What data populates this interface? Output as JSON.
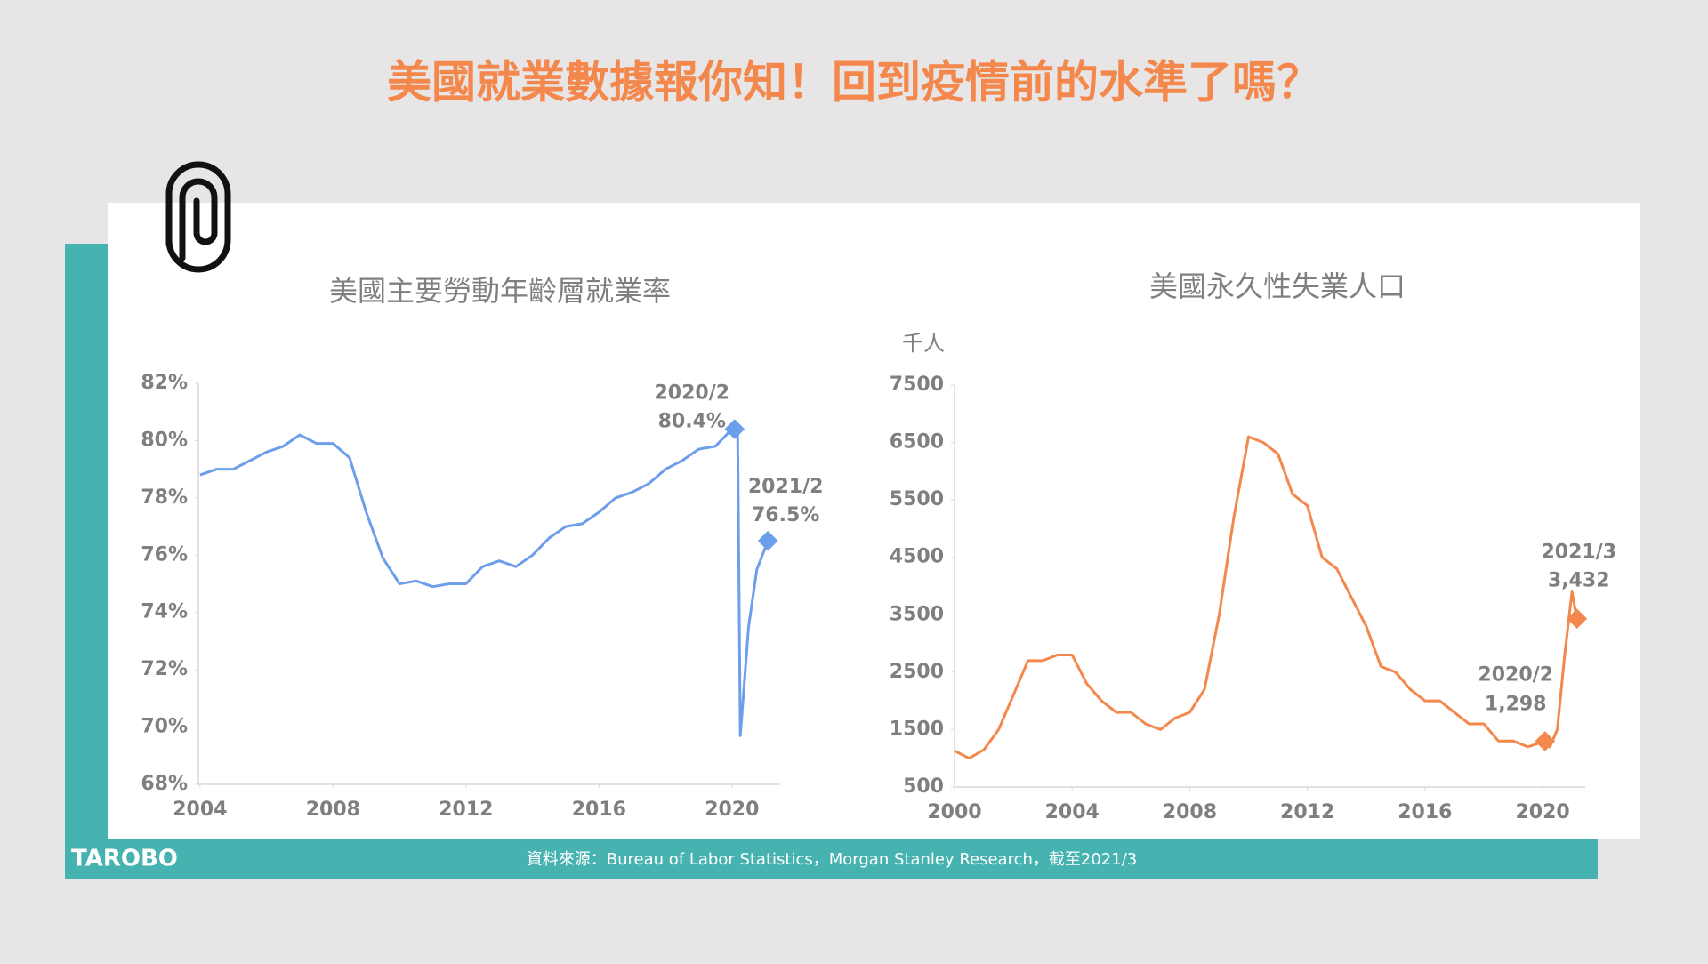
{
  "header": {
    "title": "美國就業數據報你知！回到疫情前的水準了嗎？"
  },
  "chart_data": [
    {
      "type": "line",
      "title": "美國主要勞動年齡層就業率",
      "x": [
        2004.0,
        2004.5,
        2005.0,
        2005.5,
        2006.0,
        2006.5,
        2007.0,
        2007.5,
        2008.0,
        2008.5,
        2009.0,
        2009.5,
        2010.0,
        2010.5,
        2011.0,
        2011.5,
        2012.0,
        2012.5,
        2013.0,
        2013.5,
        2014.0,
        2014.5,
        2015.0,
        2015.5,
        2016.0,
        2016.5,
        2017.0,
        2017.5,
        2018.0,
        2018.5,
        2019.0,
        2019.5,
        2020.0,
        2020.17,
        2020.25,
        2020.5,
        2020.75,
        2021.08
      ],
      "series": [
        {
          "color": "#6d9eeb",
          "values": [
            78.8,
            79.0,
            79.0,
            79.3,
            79.6,
            79.8,
            80.2,
            79.9,
            79.9,
            79.4,
            77.5,
            75.9,
            75.0,
            75.1,
            74.9,
            75.0,
            75.0,
            75.6,
            75.8,
            75.6,
            76.0,
            76.6,
            77.0,
            77.1,
            77.5,
            78.0,
            78.2,
            78.5,
            79.0,
            79.3,
            79.7,
            79.8,
            80.4,
            80.3,
            69.7,
            73.5,
            75.5,
            76.5
          ]
        }
      ],
      "xlim": [
        2003.95,
        2021.45
      ],
      "xticks": [
        2004,
        2008,
        2012,
        2016,
        2020
      ],
      "ylim": [
        68,
        82
      ],
      "yticks": [
        {
          "value": 68,
          "label": "68%"
        },
        {
          "value": 70,
          "label": "70%"
        },
        {
          "value": 72,
          "label": "72%"
        },
        {
          "value": 74,
          "label": "74%"
        },
        {
          "value": 76,
          "label": "76%"
        },
        {
          "value": 78,
          "label": "78%"
        },
        {
          "value": 80,
          "label": "80%"
        },
        {
          "value": 82,
          "label": "82%"
        }
      ],
      "annotations": [
        {
          "text": "2020/2",
          "x": 2020.08,
          "y": 80.4,
          "value_label": "80.4%"
        },
        {
          "text": "2021/2",
          "x": 2021.08,
          "y": 76.5,
          "value_label": "76.5%"
        }
      ]
    },
    {
      "type": "line",
      "title": "美國永久性失業人口",
      "y_label": "千人",
      "x": [
        2000.0,
        2000.5,
        2001.0,
        2001.5,
        2002.0,
        2002.5,
        2003.0,
        2003.5,
        2004.0,
        2004.5,
        2005.0,
        2005.5,
        2006.0,
        2006.5,
        2007.0,
        2007.5,
        2008.0,
        2008.5,
        2009.0,
        2009.5,
        2010.0,
        2010.5,
        2011.0,
        2011.5,
        2012.0,
        2012.5,
        2013.0,
        2013.5,
        2014.0,
        2014.5,
        2015.0,
        2015.5,
        2016.0,
        2016.5,
        2017.0,
        2017.5,
        2018.0,
        2018.5,
        2019.0,
        2019.5,
        2020.08,
        2020.25,
        2020.5,
        2020.75,
        2021.0,
        2021.17
      ],
      "series": [
        {
          "color": "#f4874b",
          "values": [
            1130,
            1000,
            1150,
            1500,
            2100,
            2700,
            2700,
            2800,
            2800,
            2300,
            2000,
            1800,
            1800,
            1600,
            1500,
            1700,
            1800,
            2200,
            3500,
            5200,
            6600,
            6500,
            6300,
            5600,
            5400,
            4500,
            4300,
            3800,
            3300,
            2600,
            2500,
            2200,
            2000,
            2000,
            1800,
            1600,
            1600,
            1300,
            1300,
            1200,
            1298,
            1200,
            1500,
            2800,
            3900,
            3432
          ]
        }
      ],
      "xlim": [
        2000,
        2021.45
      ],
      "xticks": [
        2000,
        2004,
        2008,
        2012,
        2016,
        2020
      ],
      "ylim": [
        500,
        7500
      ],
      "yticks": [
        500,
        1500,
        2500,
        3500,
        4500,
        5500,
        6500,
        7500
      ],
      "annotations": [
        {
          "text": "2020/2",
          "x": 2020.08,
          "y": 1298,
          "value_label": "1,298"
        },
        {
          "text": "2021/3",
          "x": 2021.17,
          "y": 3432,
          "value_label": "3,432"
        }
      ]
    }
  ],
  "footer": {
    "logo": "TAROBO",
    "source": "資料來源：Bureau  of Labor Statistics，Morgan Stanley Research，截至2021/3"
  }
}
